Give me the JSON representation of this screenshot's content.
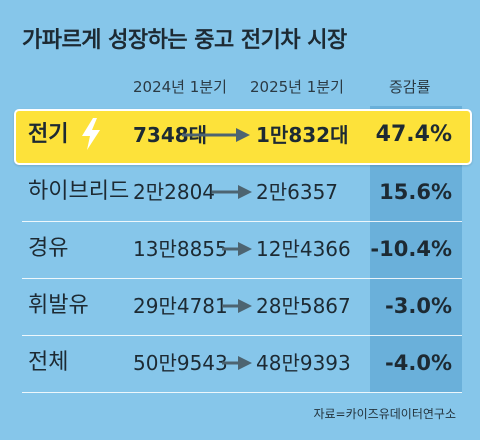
{
  "title": "가파르게 성장하는 중고 전기차 시장",
  "columns": {
    "col_2024": "2024년 1분기",
    "col_2025": "2025년 1분기",
    "rate": "증감률"
  },
  "rows": [
    {
      "name": "전기",
      "v2024": "7348대",
      "v2025": "1만832대",
      "rate": "47.4%"
    },
    {
      "name": "하이브리드",
      "v2024": "2만2804",
      "v2025": "2만6357",
      "rate": "15.6%"
    },
    {
      "name": "경유",
      "v2024": "13만8855",
      "v2025": "12만4366",
      "rate": "-10.4%"
    },
    {
      "name": "휘발유",
      "v2024": "29만4781",
      "v2025": "28만5867",
      "rate": "-3.0%"
    },
    {
      "name": "전체",
      "v2024": "50만9543",
      "v2025": "48만9393",
      "rate": "-4.0%"
    }
  ],
  "source": "자료=카이즈유데이터연구소",
  "colors": {
    "background": "#86c6ea",
    "highlight": "#fde23a",
    "arrow": "#4d6471",
    "bolt": "#ffffff"
  },
  "icons": {
    "bolt": "lightning-bolt-icon",
    "arrow": "right-arrow-icon"
  }
}
